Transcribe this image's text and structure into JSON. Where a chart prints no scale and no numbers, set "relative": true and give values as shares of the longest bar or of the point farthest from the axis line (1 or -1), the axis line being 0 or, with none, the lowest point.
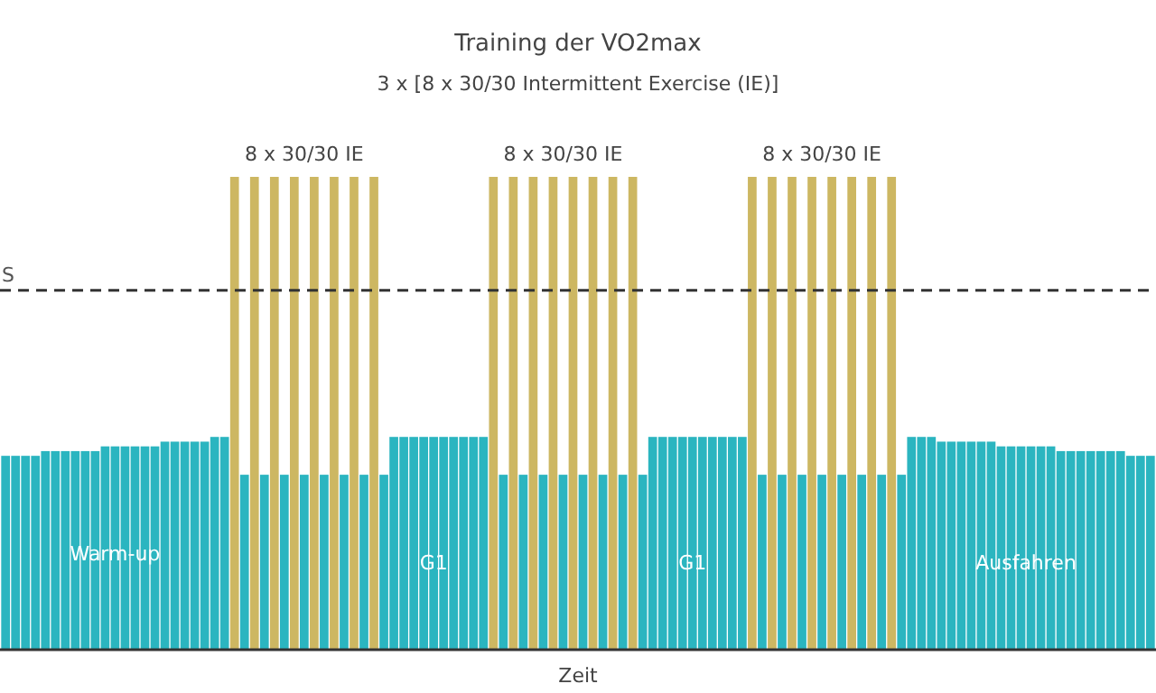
{
  "chart_data": {
    "type": "bar",
    "title": "Training der VO2max",
    "subtitle": "3 x [8 x 30/30 Intermittent Exercise (IE)]",
    "xlabel": "Zeit",
    "relative": true,
    "categories": [
      null,
      null,
      null,
      null,
      null,
      null,
      null,
      null,
      null,
      null,
      null,
      null,
      null,
      null,
      null,
      null,
      null,
      null,
      null,
      null,
      null,
      null,
      null,
      null,
      null,
      null,
      null,
      null,
      null,
      null,
      null,
      null,
      null,
      null,
      null,
      null,
      null,
      null,
      null,
      null,
      null,
      null,
      null,
      null,
      null,
      null,
      null,
      null,
      null,
      null,
      null,
      null,
      null,
      null,
      null,
      null,
      null,
      null,
      null,
      null,
      null,
      null,
      null,
      null,
      null,
      null,
      null,
      null,
      null,
      null,
      null,
      null,
      null,
      null,
      null,
      null,
      null,
      null,
      null,
      null,
      null,
      null,
      null,
      null,
      null,
      null,
      null,
      null,
      null,
      null,
      null,
      null,
      null,
      null,
      null,
      null,
      null,
      null,
      null,
      null,
      null,
      null,
      null,
      null,
      null,
      null,
      null,
      null,
      null,
      null,
      null,
      null,
      null,
      null,
      null,
      null
    ],
    "values": [
      0.41,
      0.41,
      0.41,
      0.41,
      0.42,
      0.42,
      0.42,
      0.42,
      0.42,
      0.42,
      0.43,
      0.43,
      0.43,
      0.43,
      0.43,
      0.43,
      0.44,
      0.44,
      0.44,
      0.44,
      0.44,
      0.45,
      0.45,
      1,
      0.37,
      1,
      0.37,
      1,
      0.37,
      1,
      0.37,
      1,
      0.37,
      1,
      0.37,
      1,
      0.37,
      1,
      0.37,
      0.45,
      0.45,
      0.45,
      0.45,
      0.45,
      0.45,
      0.45,
      0.45,
      0.45,
      0.45,
      1,
      0.37,
      1,
      0.37,
      1,
      0.37,
      1,
      0.37,
      1,
      0.37,
      1,
      0.37,
      1,
      0.37,
      1,
      0.37,
      0.45,
      0.45,
      0.45,
      0.45,
      0.45,
      0.45,
      0.45,
      0.45,
      0.45,
      0.45,
      1,
      0.37,
      1,
      0.37,
      1,
      0.37,
      1,
      0.37,
      1,
      0.37,
      1,
      0.37,
      1,
      0.37,
      1,
      0.37,
      0.45,
      0.45,
      0.45,
      0.44,
      0.44,
      0.44,
      0.44,
      0.44,
      0.44,
      0.43,
      0.43,
      0.43,
      0.43,
      0.43,
      0.43,
      0.42,
      0.42,
      0.42,
      0.42,
      0.42,
      0.42,
      0.42,
      0.41,
      0.41,
      0.41
    ],
    "colors": [
      "#2bb5c0",
      "#2bb5c0",
      "#2bb5c0",
      "#2bb5c0",
      "#2bb5c0",
      "#2bb5c0",
      "#2bb5c0",
      "#2bb5c0",
      "#2bb5c0",
      "#2bb5c0",
      "#2bb5c0",
      "#2bb5c0",
      "#2bb5c0",
      "#2bb5c0",
      "#2bb5c0",
      "#2bb5c0",
      "#2bb5c0",
      "#2bb5c0",
      "#2bb5c0",
      "#2bb5c0",
      "#2bb5c0",
      "#2bb5c0",
      "#2bb5c0",
      "#cdb762",
      "#2bb5c0",
      "#cdb762",
      "#2bb5c0",
      "#cdb762",
      "#2bb5c0",
      "#cdb762",
      "#2bb5c0",
      "#cdb762",
      "#2bb5c0",
      "#cdb762",
      "#2bb5c0",
      "#cdb762",
      "#2bb5c0",
      "#cdb762",
      "#2bb5c0",
      "#2bb5c0",
      "#2bb5c0",
      "#2bb5c0",
      "#2bb5c0",
      "#2bb5c0",
      "#2bb5c0",
      "#2bb5c0",
      "#2bb5c0",
      "#2bb5c0",
      "#2bb5c0",
      "#cdb762",
      "#2bb5c0",
      "#cdb762",
      "#2bb5c0",
      "#cdb762",
      "#2bb5c0",
      "#cdb762",
      "#2bb5c0",
      "#cdb762",
      "#2bb5c0",
      "#cdb762",
      "#2bb5c0",
      "#cdb762",
      "#2bb5c0",
      "#cdb762",
      "#2bb5c0",
      "#2bb5c0",
      "#2bb5c0",
      "#2bb5c0",
      "#2bb5c0",
      "#2bb5c0",
      "#2bb5c0",
      "#2bb5c0",
      "#2bb5c0",
      "#2bb5c0",
      "#2bb5c0",
      "#cdb762",
      "#2bb5c0",
      "#cdb762",
      "#2bb5c0",
      "#cdb762",
      "#2bb5c0",
      "#cdb762",
      "#2bb5c0",
      "#cdb762",
      "#2bb5c0",
      "#cdb762",
      "#2bb5c0",
      "#cdb762",
      "#2bb5c0",
      "#cdb762",
      "#2bb5c0",
      "#2bb5c0",
      "#2bb5c0",
      "#2bb5c0",
      "#2bb5c0",
      "#2bb5c0",
      "#2bb5c0",
      "#2bb5c0",
      "#2bb5c0",
      "#2bb5c0",
      "#2bb5c0",
      "#2bb5c0",
      "#2bb5c0",
      "#2bb5c0",
      "#2bb5c0",
      "#2bb5c0",
      "#2bb5c0",
      "#2bb5c0",
      "#2bb5c0",
      "#2bb5c0",
      "#2bb5c0",
      "#2bb5c0",
      "#2bb5c0",
      "#2bb5c0",
      "#2bb5c0",
      "#2bb5c0"
    ],
    "ref_lines": [
      {
        "axis": "y",
        "value": 0.76,
        "label": "S",
        "color": "#333333",
        "line_style": "dashed"
      }
    ],
    "annotations": [
      "8 x 30/30 IE",
      "8 x 30/30 IE",
      "8 x 30/30 IE",
      "Warm-up",
      "G1",
      "G1",
      "Ausfahren"
    ]
  }
}
